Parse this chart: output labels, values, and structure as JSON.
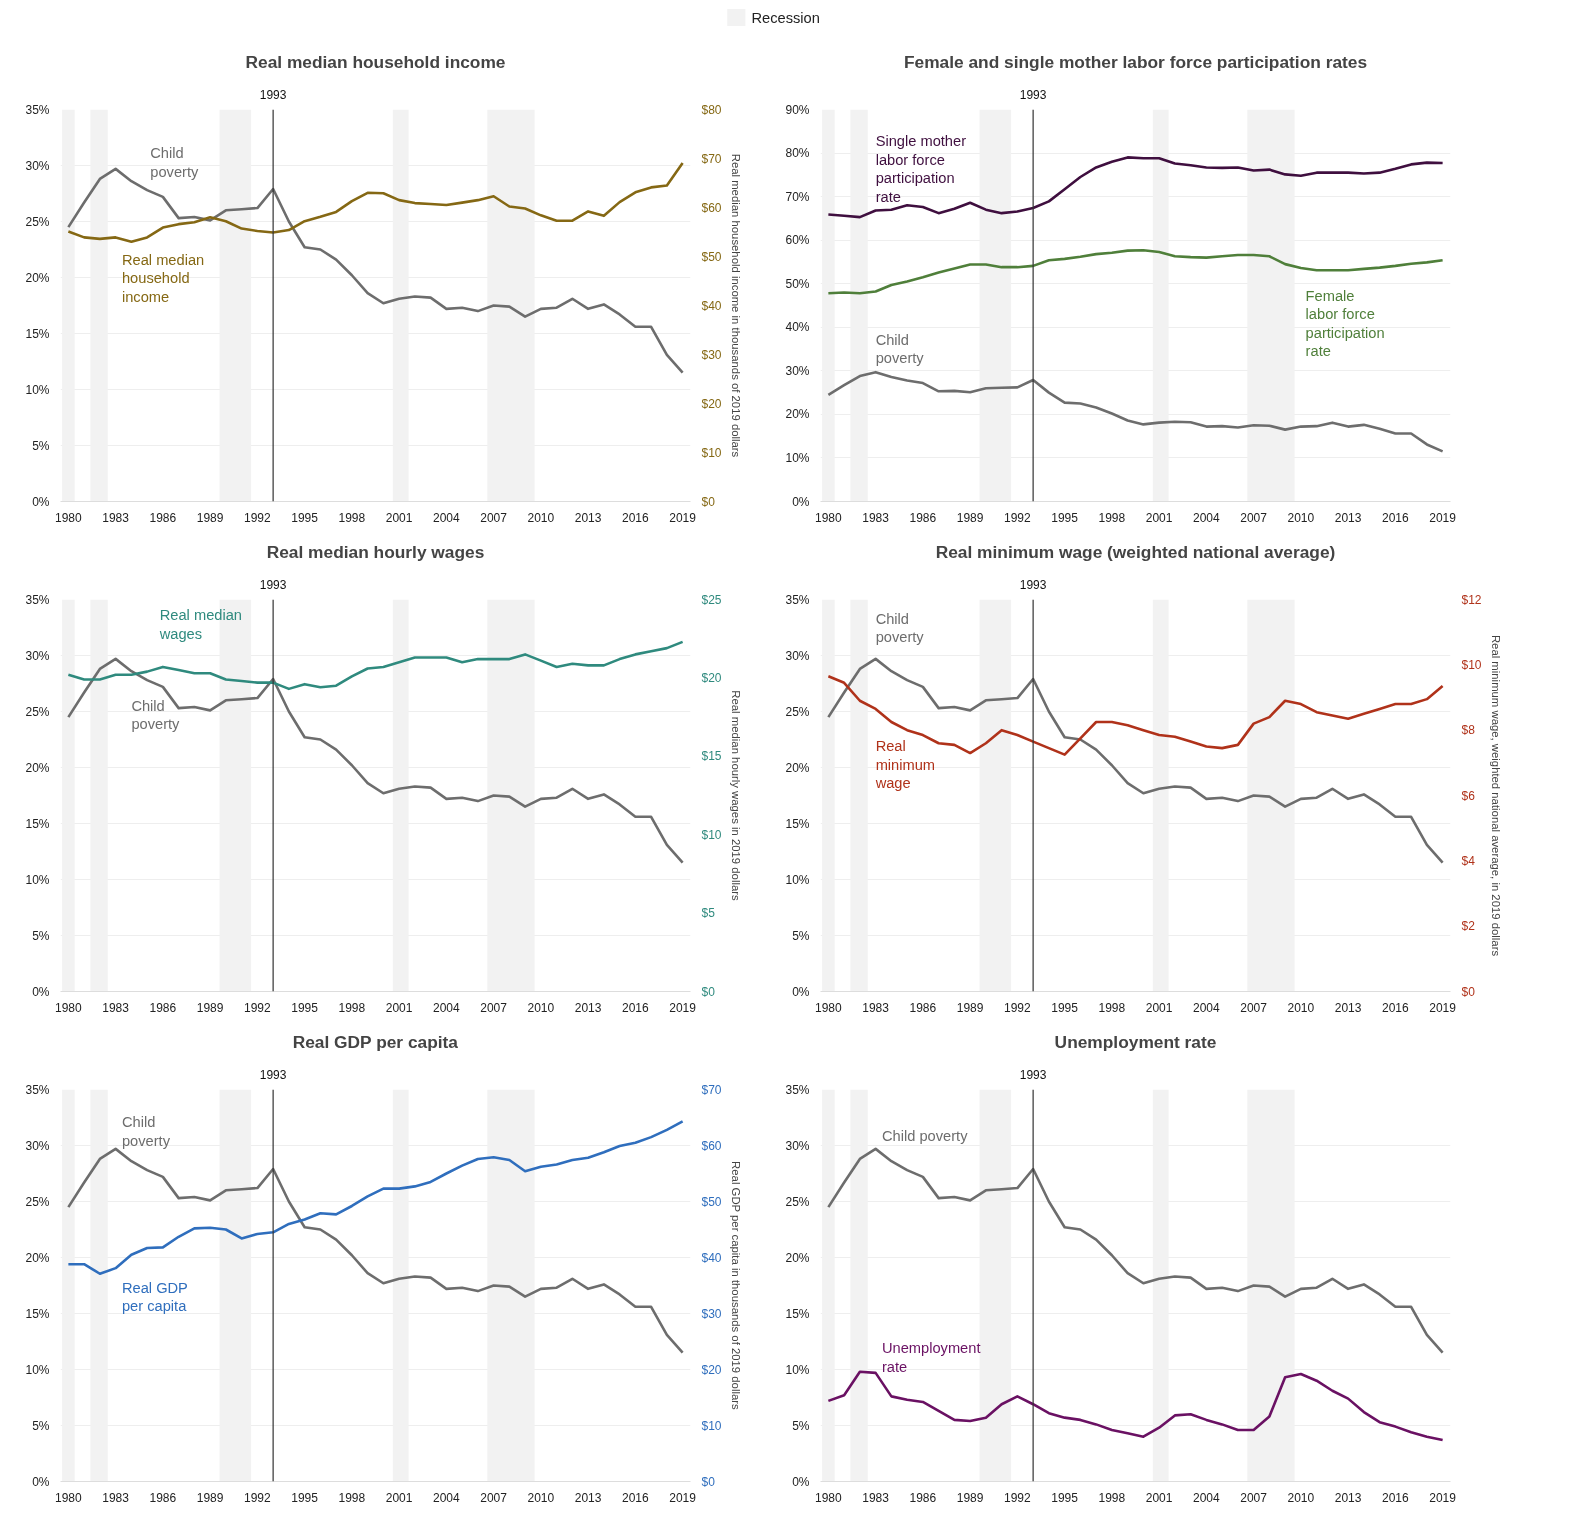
{
  "chart_data": [
    {
      "type": "line",
      "title": "Real median household income",
      "y2label": "Real median household income in thousands of 2019 dollars",
      "legend": "top",
      "grid": "y",
      "x": [
        1980,
        1981,
        1982,
        1983,
        1984,
        1985,
        1986,
        1987,
        1988,
        1989,
        1990,
        1991,
        1992,
        1993,
        1994,
        1995,
        1996,
        1997,
        1998,
        1999,
        2000,
        2001,
        2002,
        2003,
        2004,
        2005,
        2006,
        2007,
        2008,
        2009,
        2010,
        2011,
        2012,
        2013,
        2014,
        2015,
        2016,
        2017,
        2018,
        2019
      ],
      "xlim": [
        1979.5,
        2019.5
      ],
      "xticks": [
        1980,
        1983,
        1986,
        1989,
        1992,
        1995,
        1998,
        2001,
        2004,
        2007,
        2010,
        2013,
        2016,
        2019
      ],
      "ylim": [
        0,
        35
      ],
      "yticks": [
        {
          "value": 0,
          "label": "0%"
        },
        {
          "value": 5,
          "label": "5%"
        },
        {
          "value": 10,
          "label": "10%"
        },
        {
          "value": 15,
          "label": "15%"
        },
        {
          "value": 20,
          "label": "20%"
        },
        {
          "value": 25,
          "label": "25%"
        },
        {
          "value": 30,
          "label": "30%"
        },
        {
          "value": 35,
          "label": "35%"
        }
      ],
      "y2lim": [
        0,
        80
      ],
      "y2ticks": [
        {
          "value": 0,
          "label": "$0"
        },
        {
          "value": 10,
          "label": "$10"
        },
        {
          "value": 20,
          "label": "$20"
        },
        {
          "value": 30,
          "label": "$30"
        },
        {
          "value": 40,
          "label": "$40"
        },
        {
          "value": 50,
          "label": "$50"
        },
        {
          "value": 60,
          "label": "$60"
        },
        {
          "value": 70,
          "label": "$70"
        },
        {
          "value": 80,
          "label": "$80"
        }
      ],
      "series": [
        {
          "name": "Child poverty",
          "color": "#6d6d6d",
          "values": [
            24.5,
            26.7,
            28.8,
            29.7,
            28.6,
            27.8,
            27.2,
            25.3,
            25.4,
            25.1,
            26.0,
            26.1,
            26.2,
            27.9,
            25.0,
            22.7,
            22.5,
            21.6,
            20.2,
            18.6,
            17.7,
            18.1,
            18.3,
            18.2,
            17.2,
            17.3,
            17.0,
            17.5,
            17.4,
            16.5,
            17.2,
            17.3,
            18.1,
            17.2,
            17.6,
            16.7,
            15.6,
            15.6,
            13.1,
            11.5
          ]
        },
        {
          "name": "Real median household income",
          "color": "#856814",
          "axis": "y2",
          "values": [
            55.1,
            53.9,
            53.6,
            53.9,
            53.0,
            53.9,
            55.9,
            56.6,
            57.0,
            58.0,
            57.2,
            55.7,
            55.2,
            54.9,
            55.4,
            57.2,
            58.1,
            59.1,
            61.3,
            63.0,
            62.9,
            61.5,
            60.9,
            60.7,
            60.5,
            61.0,
            61.5,
            62.3,
            60.2,
            59.8,
            58.4,
            57.3,
            57.3,
            59.2,
            58.3,
            61.1,
            63.1,
            64.1,
            64.5,
            69.1
          ]
        }
      ],
      "ref_lines": [
        {
          "axis": "x",
          "value": 1993,
          "label": "1993"
        }
      ],
      "bands": [
        {
          "axis": "x",
          "from": 1979.6,
          "to": 1980.4,
          "label": "Recession",
          "color": "#f2f2f2"
        },
        {
          "axis": "x",
          "from": 1981.4,
          "to": 1982.5,
          "color": "#f2f2f2"
        },
        {
          "axis": "x",
          "from": 1989.6,
          "to": 1991.6,
          "color": "#f2f2f2"
        },
        {
          "axis": "x",
          "from": 2000.6,
          "to": 2001.6,
          "color": "#f2f2f2"
        },
        {
          "axis": "x",
          "from": 2006.6,
          "to": 2009.6,
          "color": "#f2f2f2"
        }
      ]
    },
    {
      "type": "line",
      "title": "Female and single mother labor force participation rates",
      "grid": "y",
      "x": [
        1980,
        1981,
        1982,
        1983,
        1984,
        1985,
        1986,
        1987,
        1988,
        1989,
        1990,
        1991,
        1992,
        1993,
        1994,
        1995,
        1996,
        1997,
        1998,
        1999,
        2000,
        2001,
        2002,
        2003,
        2004,
        2005,
        2006,
        2007,
        2008,
        2009,
        2010,
        2011,
        2012,
        2013,
        2014,
        2015,
        2016,
        2017,
        2018,
        2019
      ],
      "xlim": [
        1979.5,
        2019.5
      ],
      "xticks": [
        1980,
        1983,
        1986,
        1989,
        1992,
        1995,
        1998,
        2001,
        2004,
        2007,
        2010,
        2013,
        2016,
        2019
      ],
      "ylim": [
        0,
        90
      ],
      "yticks": [
        {
          "value": 0,
          "label": "0%"
        },
        {
          "value": 10,
          "label": "10%"
        },
        {
          "value": 20,
          "label": "20%"
        },
        {
          "value": 30,
          "label": "30%"
        },
        {
          "value": 40,
          "label": "40%"
        },
        {
          "value": 50,
          "label": "50%"
        },
        {
          "value": 60,
          "label": "60%"
        },
        {
          "value": 70,
          "label": "70%"
        },
        {
          "value": 80,
          "label": "80%"
        },
        {
          "value": 90,
          "label": "90%"
        }
      ],
      "series": [
        {
          "name": "Child poverty",
          "color": "#6d6d6d",
          "values": [
            24.5,
            26.7,
            28.8,
            29.7,
            28.6,
            27.8,
            27.2,
            25.3,
            25.4,
            25.1,
            26.0,
            26.1,
            26.2,
            27.9,
            25.0,
            22.7,
            22.5,
            21.6,
            20.2,
            18.6,
            17.7,
            18.1,
            18.3,
            18.2,
            17.2,
            17.3,
            17.0,
            17.5,
            17.4,
            16.5,
            17.2,
            17.3,
            18.1,
            17.2,
            17.6,
            16.7,
            15.6,
            15.6,
            13.1,
            11.5
          ]
        },
        {
          "name": "Single mother labor force participation rate",
          "color": "#3f0f3f",
          "values": [
            65.9,
            65.6,
            65.3,
            66.8,
            67.0,
            68.0,
            67.6,
            66.2,
            67.2,
            68.6,
            67.0,
            66.2,
            66.6,
            67.4,
            68.9,
            71.7,
            74.5,
            76.7,
            78.0,
            79.0,
            78.8,
            78.8,
            77.6,
            77.2,
            76.7,
            76.6,
            76.7,
            76.0,
            76.2,
            75.1,
            74.8,
            75.5,
            75.5,
            75.5,
            75.3,
            75.5,
            76.4,
            77.4,
            77.8,
            77.7
          ]
        },
        {
          "name": "Female labor force participation rate",
          "color": "#4f7f3a",
          "values": [
            47.8,
            48.0,
            47.8,
            48.2,
            49.7,
            50.5,
            51.5,
            52.6,
            53.5,
            54.4,
            54.4,
            53.8,
            53.8,
            54.1,
            55.4,
            55.7,
            56.2,
            56.8,
            57.1,
            57.6,
            57.7,
            57.3,
            56.3,
            56.1,
            56.0,
            56.3,
            56.6,
            56.6,
            56.3,
            54.5,
            53.6,
            53.1,
            53.1,
            53.1,
            53.4,
            53.7,
            54.1,
            54.6,
            54.9,
            55.4
          ]
        }
      ],
      "ref_lines": [
        {
          "axis": "x",
          "value": 1993,
          "label": "1993"
        }
      ],
      "bands": [
        {
          "axis": "x",
          "from": 1979.6,
          "to": 1980.4,
          "color": "#f2f2f2"
        },
        {
          "axis": "x",
          "from": 1981.4,
          "to": 1982.5,
          "color": "#f2f2f2"
        },
        {
          "axis": "x",
          "from": 1989.6,
          "to": 1991.6,
          "color": "#f2f2f2"
        },
        {
          "axis": "x",
          "from": 2000.6,
          "to": 2001.6,
          "color": "#f2f2f2"
        },
        {
          "axis": "x",
          "from": 2006.6,
          "to": 2009.6,
          "color": "#f2f2f2"
        }
      ]
    },
    {
      "type": "line",
      "title": "Real median hourly wages",
      "y2label": "Real median hourly wages in 2019 dollars",
      "grid": "y",
      "x": [
        1980,
        1981,
        1982,
        1983,
        1984,
        1985,
        1986,
        1987,
        1988,
        1989,
        1990,
        1991,
        1992,
        1993,
        1994,
        1995,
        1996,
        1997,
        1998,
        1999,
        2000,
        2001,
        2002,
        2003,
        2004,
        2005,
        2006,
        2007,
        2008,
        2009,
        2010,
        2011,
        2012,
        2013,
        2014,
        2015,
        2016,
        2017,
        2018,
        2019
      ],
      "xlim": [
        1979.5,
        2019.5
      ],
      "xticks": [
        1980,
        1983,
        1986,
        1989,
        1992,
        1995,
        1998,
        2001,
        2004,
        2007,
        2010,
        2013,
        2016,
        2019
      ],
      "ylim": [
        0,
        35
      ],
      "yticks": [
        {
          "value": 0,
          "label": "0%"
        },
        {
          "value": 5,
          "label": "5%"
        },
        {
          "value": 10,
          "label": "10%"
        },
        {
          "value": 15,
          "label": "15%"
        },
        {
          "value": 20,
          "label": "20%"
        },
        {
          "value": 25,
          "label": "25%"
        },
        {
          "value": 30,
          "label": "30%"
        },
        {
          "value": 35,
          "label": "35%"
        }
      ],
      "y2lim": [
        0,
        25
      ],
      "y2ticks": [
        {
          "value": 0,
          "label": "$0"
        },
        {
          "value": 5,
          "label": "$5"
        },
        {
          "value": 10,
          "label": "$10"
        },
        {
          "value": 15,
          "label": "$15"
        },
        {
          "value": 20,
          "label": "$20"
        },
        {
          "value": 25,
          "label": "$25"
        }
      ],
      "series": [
        {
          "name": "Child poverty",
          "color": "#6d6d6d",
          "values": [
            24.5,
            26.7,
            28.8,
            29.7,
            28.6,
            27.8,
            27.2,
            25.3,
            25.4,
            25.1,
            26.0,
            26.1,
            26.2,
            27.9,
            25.0,
            22.7,
            22.5,
            21.6,
            20.2,
            18.6,
            17.7,
            18.1,
            18.3,
            18.2,
            17.2,
            17.3,
            17.0,
            17.5,
            17.4,
            16.5,
            17.2,
            17.3,
            18.1,
            17.2,
            17.6,
            16.7,
            15.6,
            15.6,
            13.1,
            11.5
          ]
        },
        {
          "name": "Real median wages",
          "color": "#2f8a7e",
          "axis": "y2",
          "values": [
            20.2,
            19.9,
            19.9,
            20.2,
            20.2,
            20.4,
            20.7,
            20.5,
            20.3,
            20.3,
            19.9,
            19.8,
            19.7,
            19.7,
            19.3,
            19.6,
            19.4,
            19.5,
            20.1,
            20.6,
            20.7,
            21.0,
            21.3,
            21.3,
            21.3,
            21.0,
            21.2,
            21.2,
            21.2,
            21.5,
            21.1,
            20.7,
            20.9,
            20.8,
            20.8,
            21.2,
            21.5,
            21.7,
            21.9,
            22.3
          ]
        }
      ],
      "ref_lines": [
        {
          "axis": "x",
          "value": 1993,
          "label": "1993"
        }
      ],
      "bands": [
        {
          "axis": "x",
          "from": 1979.6,
          "to": 1980.4,
          "color": "#f2f2f2"
        },
        {
          "axis": "x",
          "from": 1981.4,
          "to": 1982.5,
          "color": "#f2f2f2"
        },
        {
          "axis": "x",
          "from": 1989.6,
          "to": 1991.6,
          "color": "#f2f2f2"
        },
        {
          "axis": "x",
          "from": 2000.6,
          "to": 2001.6,
          "color": "#f2f2f2"
        },
        {
          "axis": "x",
          "from": 2006.6,
          "to": 2009.6,
          "color": "#f2f2f2"
        }
      ]
    },
    {
      "type": "line",
      "title": "Real minimum wage (weighted national average)",
      "y2label": "Real minimum wage, weighted national average, in 2019 dollars",
      "grid": "y",
      "x": [
        1980,
        1981,
        1982,
        1983,
        1984,
        1985,
        1986,
        1987,
        1988,
        1989,
        1990,
        1991,
        1992,
        1993,
        1994,
        1995,
        1996,
        1997,
        1998,
        1999,
        2000,
        2001,
        2002,
        2003,
        2004,
        2005,
        2006,
        2007,
        2008,
        2009,
        2010,
        2011,
        2012,
        2013,
        2014,
        2015,
        2016,
        2017,
        2018,
        2019
      ],
      "xlim": [
        1979.5,
        2019.5
      ],
      "xticks": [
        1980,
        1983,
        1986,
        1989,
        1992,
        1995,
        1998,
        2001,
        2004,
        2007,
        2010,
        2013,
        2016,
        2019
      ],
      "ylim": [
        0,
        35
      ],
      "yticks": [
        {
          "value": 0,
          "label": "0%"
        },
        {
          "value": 5,
          "label": "5%"
        },
        {
          "value": 10,
          "label": "10%"
        },
        {
          "value": 15,
          "label": "15%"
        },
        {
          "value": 20,
          "label": "20%"
        },
        {
          "value": 25,
          "label": "25%"
        },
        {
          "value": 30,
          "label": "30%"
        },
        {
          "value": 35,
          "label": "35%"
        }
      ],
      "y2lim": [
        0,
        12
      ],
      "y2ticks": [
        {
          "value": 0,
          "label": "$0"
        },
        {
          "value": 2,
          "label": "$2"
        },
        {
          "value": 4,
          "label": "$4"
        },
        {
          "value": 6,
          "label": "$6"
        },
        {
          "value": 8,
          "label": "$8"
        },
        {
          "value": 10,
          "label": "$10"
        },
        {
          "value": 12,
          "label": "$12"
        }
      ],
      "series": [
        {
          "name": "Child poverty",
          "color": "#6d6d6d",
          "values": [
            24.5,
            26.7,
            28.8,
            29.7,
            28.6,
            27.8,
            27.2,
            25.3,
            25.4,
            25.1,
            26.0,
            26.1,
            26.2,
            27.9,
            25.0,
            22.7,
            22.5,
            21.6,
            20.2,
            18.6,
            17.7,
            18.1,
            18.3,
            18.2,
            17.2,
            17.3,
            17.0,
            17.5,
            17.4,
            16.5,
            17.2,
            17.3,
            18.1,
            17.2,
            17.6,
            16.7,
            15.6,
            15.6,
            13.1,
            11.5
          ]
        },
        {
          "name": "Real minimum wage",
          "color": "#b0321a",
          "axis": "y2",
          "values": [
            9.65,
            9.45,
            8.9,
            8.65,
            8.25,
            8.0,
            7.85,
            7.6,
            7.55,
            7.3,
            7.6,
            8.0,
            7.85,
            7.65,
            7.45,
            7.25,
            7.75,
            8.25,
            8.25,
            8.15,
            8.0,
            7.85,
            7.8,
            7.65,
            7.5,
            7.45,
            7.55,
            8.2,
            8.4,
            8.9,
            8.8,
            8.55,
            8.45,
            8.35,
            8.5,
            8.65,
            8.8,
            8.8,
            8.95,
            9.35
          ]
        }
      ],
      "ref_lines": [
        {
          "axis": "x",
          "value": 1993,
          "label": "1993"
        }
      ],
      "bands": [
        {
          "axis": "x",
          "from": 1979.6,
          "to": 1980.4,
          "color": "#f2f2f2"
        },
        {
          "axis": "x",
          "from": 1981.4,
          "to": 1982.5,
          "color": "#f2f2f2"
        },
        {
          "axis": "x",
          "from": 1989.6,
          "to": 1991.6,
          "color": "#f2f2f2"
        },
        {
          "axis": "x",
          "from": 2000.6,
          "to": 2001.6,
          "color": "#f2f2f2"
        },
        {
          "axis": "x",
          "from": 2006.6,
          "to": 2009.6,
          "color": "#f2f2f2"
        }
      ]
    },
    {
      "type": "line",
      "title": "Real GDP per capita",
      "y2label": "Real GDP per capita in thousands of 2019 dollars",
      "grid": "y",
      "x": [
        1980,
        1981,
        1982,
        1983,
        1984,
        1985,
        1986,
        1987,
        1988,
        1989,
        1990,
        1991,
        1992,
        1993,
        1994,
        1995,
        1996,
        1997,
        1998,
        1999,
        2000,
        2001,
        2002,
        2003,
        2004,
        2005,
        2006,
        2007,
        2008,
        2009,
        2010,
        2011,
        2012,
        2013,
        2014,
        2015,
        2016,
        2017,
        2018,
        2019
      ],
      "xlim": [
        1979.5,
        2019.5
      ],
      "xticks": [
        1980,
        1983,
        1986,
        1989,
        1992,
        1995,
        1998,
        2001,
        2004,
        2007,
        2010,
        2013,
        2016,
        2019
      ],
      "ylim": [
        0,
        35
      ],
      "yticks": [
        {
          "value": 0,
          "label": "0%"
        },
        {
          "value": 5,
          "label": "5%"
        },
        {
          "value": 10,
          "label": "10%"
        },
        {
          "value": 15,
          "label": "15%"
        },
        {
          "value": 20,
          "label": "20%"
        },
        {
          "value": 25,
          "label": "25%"
        },
        {
          "value": 30,
          "label": "30%"
        },
        {
          "value": 35,
          "label": "35%"
        }
      ],
      "y2lim": [
        0,
        70
      ],
      "y2ticks": [
        {
          "value": 0,
          "label": "$0"
        },
        {
          "value": 10,
          "label": "$10"
        },
        {
          "value": 20,
          "label": "$20"
        },
        {
          "value": 30,
          "label": "$30"
        },
        {
          "value": 40,
          "label": "$40"
        },
        {
          "value": 50,
          "label": "$50"
        },
        {
          "value": 60,
          "label": "$60"
        },
        {
          "value": 70,
          "label": "$70"
        }
      ],
      "series": [
        {
          "name": "Child poverty",
          "color": "#6d6d6d",
          "values": [
            24.5,
            26.7,
            28.8,
            29.7,
            28.6,
            27.8,
            27.2,
            25.3,
            25.4,
            25.1,
            26.0,
            26.1,
            26.2,
            27.9,
            25.0,
            22.7,
            22.5,
            21.6,
            20.2,
            18.6,
            17.7,
            18.1,
            18.3,
            18.2,
            17.2,
            17.3,
            17.0,
            17.5,
            17.4,
            16.5,
            17.2,
            17.3,
            18.1,
            17.2,
            17.6,
            16.7,
            15.6,
            15.6,
            13.1,
            11.5
          ]
        },
        {
          "name": "Real GDP per capita",
          "color": "#2f6ebd",
          "axis": "y2",
          "values": [
            38.8,
            38.8,
            37.1,
            38.1,
            40.5,
            41.7,
            41.8,
            43.7,
            45.2,
            45.3,
            45.0,
            43.4,
            44.2,
            44.5,
            46.0,
            46.8,
            47.9,
            47.7,
            49.2,
            50.9,
            52.3,
            52.3,
            52.7,
            53.5,
            55.0,
            56.4,
            57.6,
            57.9,
            57.4,
            55.4,
            56.2,
            56.6,
            57.4,
            57.8,
            58.8,
            59.9,
            60.5,
            61.5,
            62.8,
            64.3
          ]
        }
      ],
      "ref_lines": [
        {
          "axis": "x",
          "value": 1993,
          "label": "1993"
        }
      ],
      "bands": [
        {
          "axis": "x",
          "from": 1979.6,
          "to": 1980.4,
          "color": "#f2f2f2"
        },
        {
          "axis": "x",
          "from": 1981.4,
          "to": 1982.5,
          "color": "#f2f2f2"
        },
        {
          "axis": "x",
          "from": 1989.6,
          "to": 1991.6,
          "color": "#f2f2f2"
        },
        {
          "axis": "x",
          "from": 2000.6,
          "to": 2001.6,
          "color": "#f2f2f2"
        },
        {
          "axis": "x",
          "from": 2006.6,
          "to": 2009.6,
          "color": "#f2f2f2"
        }
      ]
    },
    {
      "type": "line",
      "title": "Unemployment rate",
      "grid": "y",
      "x": [
        1980,
        1981,
        1982,
        1983,
        1984,
        1985,
        1986,
        1987,
        1988,
        1989,
        1990,
        1991,
        1992,
        1993,
        1994,
        1995,
        1996,
        1997,
        1998,
        1999,
        2000,
        2001,
        2002,
        2003,
        2004,
        2005,
        2006,
        2007,
        2008,
        2009,
        2010,
        2011,
        2012,
        2013,
        2014,
        2015,
        2016,
        2017,
        2018,
        2019
      ],
      "xlim": [
        1979.5,
        2019.5
      ],
      "xticks": [
        1980,
        1983,
        1986,
        1989,
        1992,
        1995,
        1998,
        2001,
        2004,
        2007,
        2010,
        2013,
        2016,
        2019
      ],
      "ylim": [
        0,
        35
      ],
      "yticks": [
        {
          "value": 0,
          "label": "0%"
        },
        {
          "value": 5,
          "label": "5%"
        },
        {
          "value": 10,
          "label": "10%"
        },
        {
          "value": 15,
          "label": "15%"
        },
        {
          "value": 20,
          "label": "20%"
        },
        {
          "value": 25,
          "label": "25%"
        },
        {
          "value": 30,
          "label": "30%"
        },
        {
          "value": 35,
          "label": "35%"
        }
      ],
      "series": [
        {
          "name": "Child poverty",
          "color": "#6d6d6d",
          "values": [
            24.5,
            26.7,
            28.8,
            29.7,
            28.6,
            27.8,
            27.2,
            25.3,
            25.4,
            25.1,
            26.0,
            26.1,
            26.2,
            27.9,
            25.0,
            22.7,
            22.5,
            21.6,
            20.2,
            18.6,
            17.7,
            18.1,
            18.3,
            18.2,
            17.2,
            17.3,
            17.0,
            17.5,
            17.4,
            16.5,
            17.2,
            17.3,
            18.1,
            17.2,
            17.6,
            16.7,
            15.6,
            15.6,
            13.1,
            11.5
          ]
        },
        {
          "name": "Unemployment rate",
          "color": "#6a1163",
          "values": [
            7.2,
            7.7,
            9.8,
            9.7,
            7.6,
            7.3,
            7.1,
            6.3,
            5.5,
            5.4,
            5.7,
            6.9,
            7.6,
            6.9,
            6.1,
            5.7,
            5.5,
            5.1,
            4.6,
            4.3,
            4.0,
            4.8,
            5.9,
            6.0,
            5.5,
            5.1,
            4.6,
            4.6,
            5.8,
            9.3,
            9.6,
            9.0,
            8.1,
            7.4,
            6.2,
            5.3,
            4.9,
            4.4,
            4.0,
            3.7
          ]
        }
      ],
      "ref_lines": [
        {
          "axis": "x",
          "value": 1993,
          "label": "1993"
        }
      ],
      "bands": [
        {
          "axis": "x",
          "from": 1979.6,
          "to": 1980.4,
          "color": "#f2f2f2"
        },
        {
          "axis": "x",
          "from": 1981.4,
          "to": 1982.5,
          "color": "#f2f2f2"
        },
        {
          "axis": "x",
          "from": 1989.6,
          "to": 1991.6,
          "color": "#f2f2f2"
        },
        {
          "axis": "x",
          "from": 2000.6,
          "to": 2001.6,
          "color": "#f2f2f2"
        },
        {
          "axis": "x",
          "from": 2006.6,
          "to": 2009.6,
          "color": "#f2f2f2"
        }
      ]
    }
  ]
}
